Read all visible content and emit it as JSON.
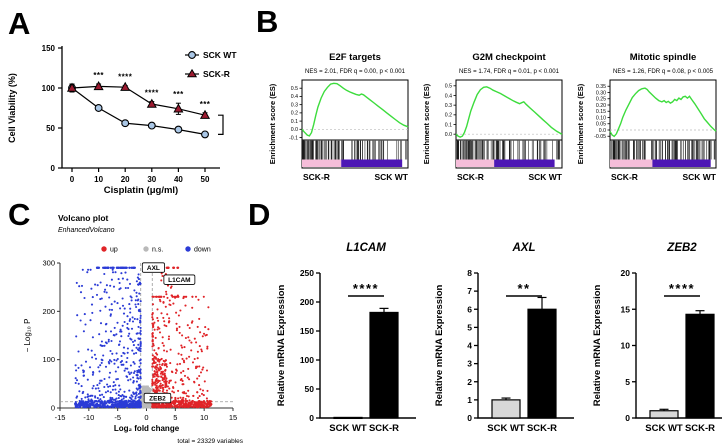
{
  "panels": {
    "a": "A",
    "b": "B",
    "c": "C",
    "d": "D"
  },
  "colors": {
    "wt_marker": "#aac7e6",
    "r_marker": "#9c1b30",
    "series_line": "#000000",
    "gsea_curve": "#3ddc3d",
    "gsea_pink": "#f5bdd9",
    "gsea_purple": "#4d17b5",
    "volcano_up": "#e02428",
    "volcano_down": "#2b3bd6",
    "volcano_ns": "#b9b9b9",
    "threshold_line": "#999999",
    "bar_wt_fill": "#d8d8d8",
    "bar_r_fill": "#000000"
  },
  "chart_data": [
    {
      "id": "viability",
      "type": "line",
      "xlabel": "Cisplatin (μg/ml)",
      "ylabel": "Cell Viability (%)",
      "x": [
        0,
        10,
        20,
        30,
        40,
        50
      ],
      "ylim": [
        0,
        150
      ],
      "yticks": [
        0,
        50,
        100,
        150
      ],
      "series": [
        {
          "name": "SCK WT",
          "marker": "circle",
          "values": [
            100,
            75,
            56,
            53,
            48,
            42
          ],
          "errors": [
            5,
            2,
            2,
            2,
            2,
            2
          ]
        },
        {
          "name": "SCK-R",
          "marker": "triangle",
          "values": [
            100,
            102,
            101,
            80,
            74,
            66
          ],
          "errors": [
            4,
            3,
            2,
            3,
            7,
            3
          ]
        }
      ],
      "significance": [
        "",
        "***",
        "****",
        "****",
        "***",
        "***"
      ],
      "legend_position": "top-right"
    },
    {
      "id": "gsea",
      "type": "line",
      "ylabel": "Enrichment score (ES)",
      "plots": [
        {
          "title": "E2F targets",
          "stats": "NES = 2.01, FDR q = 0.00, p < 0.001",
          "ylim": [
            -0.13,
            0.6
          ],
          "yticks": [
            -0.1,
            0,
            0.1,
            0.2,
            0.3,
            0.4,
            0.5
          ],
          "ytick_labels": [
            "-0.1",
            "0.0",
            "0.1",
            "0.2",
            "0.3",
            "0.4",
            "0.5"
          ],
          "left_label": "SCK-R",
          "right_label": "SCK WT",
          "pink_end": 0.37,
          "purple_end": 0.945,
          "hits": 105,
          "hit_skew": 1.7,
          "curve": [
            [
              0,
              0
            ],
            [
              0.02,
              -0.03
            ],
            [
              0.05,
              -0.07
            ],
            [
              0.07,
              -0.08
            ],
            [
              0.09,
              -0.04
            ],
            [
              0.11,
              0.06
            ],
            [
              0.13,
              0.17
            ],
            [
              0.15,
              0.27
            ],
            [
              0.18,
              0.38
            ],
            [
              0.21,
              0.46
            ],
            [
              0.24,
              0.51
            ],
            [
              0.27,
              0.55
            ],
            [
              0.3,
              0.56
            ],
            [
              0.33,
              0.555
            ],
            [
              0.36,
              0.53
            ],
            [
              0.39,
              0.5
            ],
            [
              0.42,
              0.475
            ],
            [
              0.45,
              0.455
            ],
            [
              0.48,
              0.44
            ],
            [
              0.51,
              0.425
            ],
            [
              0.54,
              0.415
            ],
            [
              0.56,
              0.43
            ],
            [
              0.58,
              0.42
            ],
            [
              0.6,
              0.4
            ],
            [
              0.64,
              0.36
            ],
            [
              0.68,
              0.32
            ],
            [
              0.72,
              0.28
            ],
            [
              0.76,
              0.24
            ],
            [
              0.8,
              0.2
            ],
            [
              0.84,
              0.16
            ],
            [
              0.88,
              0.12
            ],
            [
              0.92,
              0.08
            ],
            [
              0.96,
              0.05
            ],
            [
              1,
              0.03
            ]
          ]
        },
        {
          "title": "G2M checkpoint",
          "stats": "NES = 1.74, FDR q = 0.01, p < 0.001",
          "ylim": [
            -0.06,
            0.56
          ],
          "yticks": [
            0,
            0.1,
            0.2,
            0.3,
            0.4,
            0.5
          ],
          "ytick_labels": [
            "0.0",
            "0.1",
            "0.2",
            "0.3",
            "0.4",
            "0.5"
          ],
          "left_label": "SCK-R",
          "right_label": "SCK WT",
          "pink_end": 0.36,
          "purple_end": 0.93,
          "hits": 110,
          "hit_skew": 1.6,
          "curve": [
            [
              0,
              0
            ],
            [
              0.02,
              -0.02
            ],
            [
              0.04,
              -0.03
            ],
            [
              0.06,
              -0.02
            ],
            [
              0.08,
              0.02
            ],
            [
              0.1,
              0.08
            ],
            [
              0.12,
              0.16
            ],
            [
              0.14,
              0.24
            ],
            [
              0.17,
              0.33
            ],
            [
              0.2,
              0.41
            ],
            [
              0.23,
              0.46
            ],
            [
              0.26,
              0.485
            ],
            [
              0.29,
              0.49
            ],
            [
              0.32,
              0.475
            ],
            [
              0.35,
              0.455
            ],
            [
              0.38,
              0.44
            ],
            [
              0.42,
              0.42
            ],
            [
              0.46,
              0.395
            ],
            [
              0.5,
              0.37
            ],
            [
              0.54,
              0.345
            ],
            [
              0.57,
              0.33
            ],
            [
              0.6,
              0.315
            ],
            [
              0.62,
              0.325
            ],
            [
              0.64,
              0.335
            ],
            [
              0.66,
              0.31
            ],
            [
              0.7,
              0.27
            ],
            [
              0.74,
              0.23
            ],
            [
              0.78,
              0.19
            ],
            [
              0.82,
              0.15
            ],
            [
              0.86,
              0.11
            ],
            [
              0.9,
              0.07
            ],
            [
              0.95,
              0.03
            ],
            [
              1,
              0
            ]
          ]
        },
        {
          "title": "Mitotic spindle",
          "stats": "NES = 1.26, FDR q = 0.08, p < 0.005",
          "ylim": [
            -0.08,
            0.4
          ],
          "yticks": [
            -0.05,
            0,
            0.05,
            0.1,
            0.15,
            0.2,
            0.25,
            0.3,
            0.35
          ],
          "ytick_labels": [
            "-0.05",
            "0.0",
            "0.05",
            "0.10",
            "0.15",
            "0.20",
            "0.25",
            "0.30",
            "0.35"
          ],
          "left_label": "SCK-R",
          "right_label": "SCK WT",
          "pink_end": 0.4,
          "purple_end": 0.95,
          "hits": 120,
          "hit_skew": 1.3,
          "curve": [
            [
              0,
              -0.01
            ],
            [
              0.02,
              -0.04
            ],
            [
              0.04,
              -0.05
            ],
            [
              0.06,
              -0.03
            ],
            [
              0.08,
              0.01
            ],
            [
              0.1,
              0.05
            ],
            [
              0.12,
              0.1
            ],
            [
              0.15,
              0.16
            ],
            [
              0.18,
              0.21
            ],
            [
              0.21,
              0.26
            ],
            [
              0.24,
              0.29
            ],
            [
              0.27,
              0.315
            ],
            [
              0.3,
              0.33
            ],
            [
              0.33,
              0.335
            ],
            [
              0.35,
              0.325
            ],
            [
              0.37,
              0.305
            ],
            [
              0.4,
              0.28
            ],
            [
              0.43,
              0.255
            ],
            [
              0.46,
              0.235
            ],
            [
              0.49,
              0.225
            ],
            [
              0.51,
              0.235
            ],
            [
              0.53,
              0.22
            ],
            [
              0.55,
              0.23
            ],
            [
              0.57,
              0.215
            ],
            [
              0.59,
              0.225
            ],
            [
              0.61,
              0.245
            ],
            [
              0.63,
              0.235
            ],
            [
              0.65,
              0.255
            ],
            [
              0.67,
              0.245
            ],
            [
              0.69,
              0.265
            ],
            [
              0.71,
              0.27
            ],
            [
              0.73,
              0.255
            ],
            [
              0.75,
              0.27
            ],
            [
              0.77,
              0.245
            ],
            [
              0.8,
              0.21
            ],
            [
              0.83,
              0.17
            ],
            [
              0.86,
              0.13
            ],
            [
              0.89,
              0.09
            ],
            [
              0.92,
              0.06
            ],
            [
              0.95,
              0.03
            ],
            [
              0.98,
              0.005
            ],
            [
              1,
              -0.01
            ]
          ]
        }
      ]
    },
    {
      "id": "volcano",
      "type": "scatter",
      "title": "Volcano plot",
      "subtitle": "EnhancedVolcano",
      "xlabel": "Log₂ fold change",
      "ylabel": "− Log₁₀ P",
      "xlim": [
        -15,
        15
      ],
      "ylim": [
        0,
        300
      ],
      "xticks": [
        -15,
        -10,
        -5,
        0,
        5,
        10,
        15
      ],
      "yticks": [
        0,
        100,
        200,
        300
      ],
      "legend": [
        {
          "label": "up",
          "color_key": "volcano_up"
        },
        {
          "label": "n.s.",
          "color_key": "volcano_ns"
        },
        {
          "label": "down",
          "color_key": "volcano_down"
        }
      ],
      "thresholds": {
        "x": [
          -1,
          1
        ],
        "y": 13
      },
      "labeled_points": [
        {
          "gene": "AXL",
          "x": 1.2,
          "y": 290
        },
        {
          "gene": "L1CAM",
          "x": 5.7,
          "y": 265
        },
        {
          "gene": "ZEB2",
          "x": 1.9,
          "y": 20
        }
      ],
      "caption": "total = 23329 variables"
    },
    {
      "id": "qpcr",
      "type": "bar",
      "ylabel": "Relative mRNA Expression",
      "categories": [
        "SCK WT",
        "SCK-R"
      ],
      "charts": [
        {
          "title": "L1CAM",
          "values": [
            1,
            182
          ],
          "errors": [
            0.5,
            7
          ],
          "significance": "****",
          "ylim": [
            0,
            250
          ],
          "yticks": [
            0,
            50,
            100,
            150,
            200,
            250
          ]
        },
        {
          "title": "AXL",
          "values": [
            1,
            6
          ],
          "errors": [
            0.1,
            0.65
          ],
          "significance": "**",
          "ylim": [
            0,
            8
          ],
          "yticks": [
            0,
            1,
            2,
            3,
            4,
            5,
            6,
            7,
            8
          ]
        },
        {
          "title": "ZEB2",
          "values": [
            1,
            14.3
          ],
          "errors": [
            0.2,
            0.5
          ],
          "significance": "****",
          "ylim": [
            0,
            20
          ],
          "yticks": [
            0,
            5,
            10,
            15,
            20
          ]
        }
      ]
    }
  ]
}
